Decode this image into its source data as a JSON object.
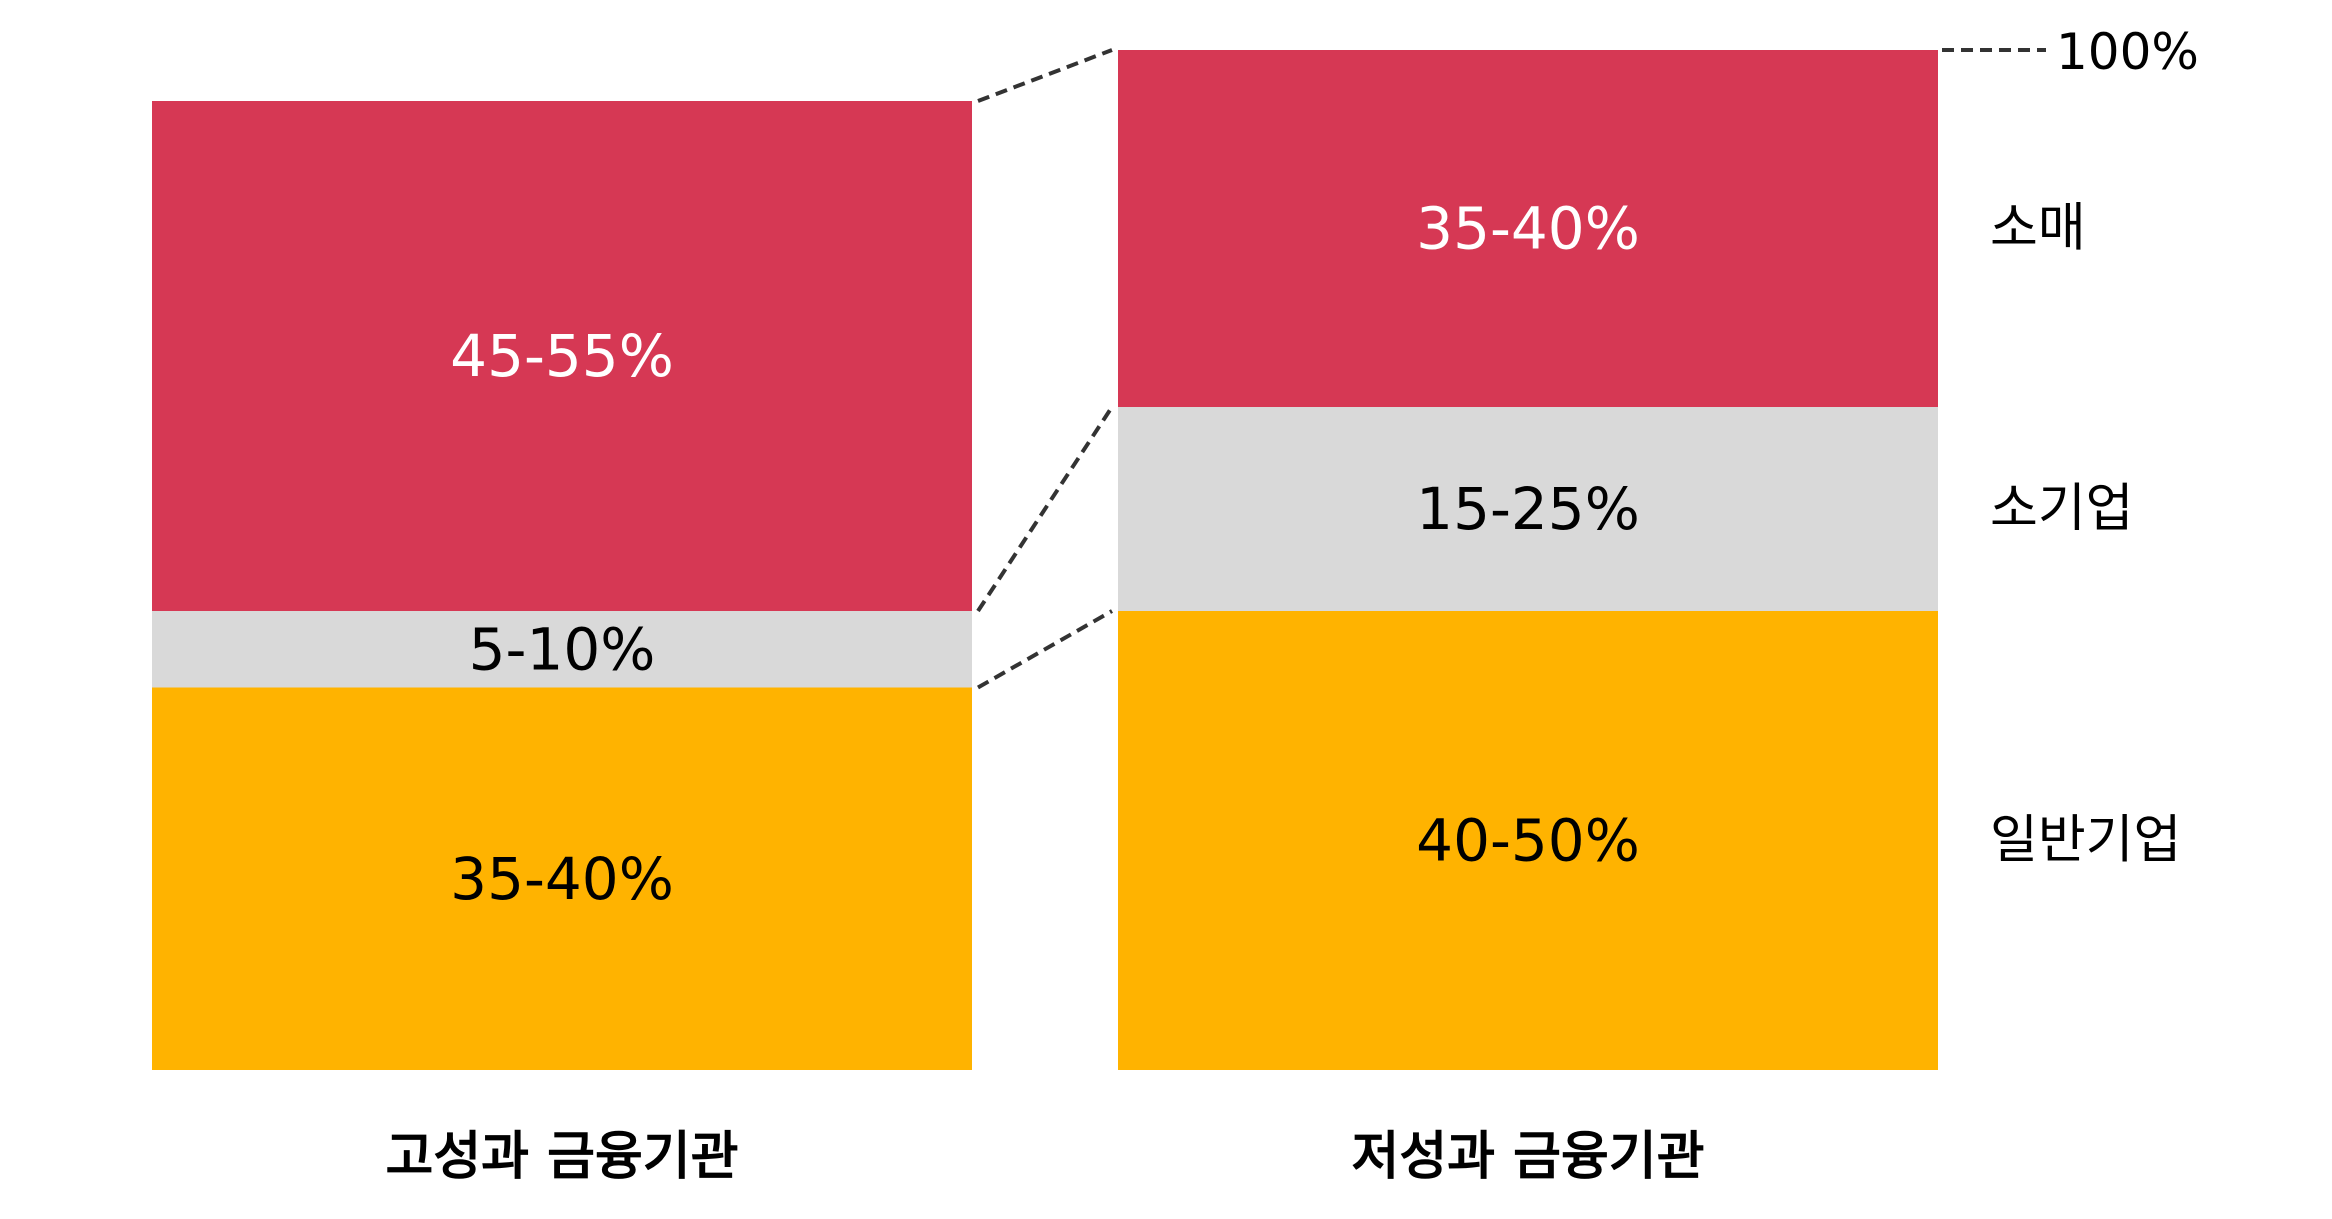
{
  "chart_data": {
    "type": "bar",
    "subtype": "stacked-100-percent-range",
    "top_reference_label": "100%",
    "categories": [
      "고성과 금융기관",
      "저성과 금융기관"
    ],
    "series": [
      {
        "name": "일반기업",
        "color": "#FFB300",
        "text_color": "#000000",
        "values": [
          37.5,
          45
        ],
        "labels": [
          "35-40%",
          "40-50%"
        ]
      },
      {
        "name": "소기업",
        "color": "#D9D9D9",
        "text_color": "#000000",
        "values": [
          7.5,
          20
        ],
        "labels": [
          "5-10%",
          "15-25%"
        ]
      },
      {
        "name": "소매",
        "color": "#D63854",
        "text_color": "#FFFFFF",
        "values": [
          50,
          35
        ],
        "labels": [
          "45-55%",
          "35-40%"
        ]
      }
    ],
    "ylim": [
      0,
      100
    ],
    "legend": "right-inline",
    "grid": false
  }
}
